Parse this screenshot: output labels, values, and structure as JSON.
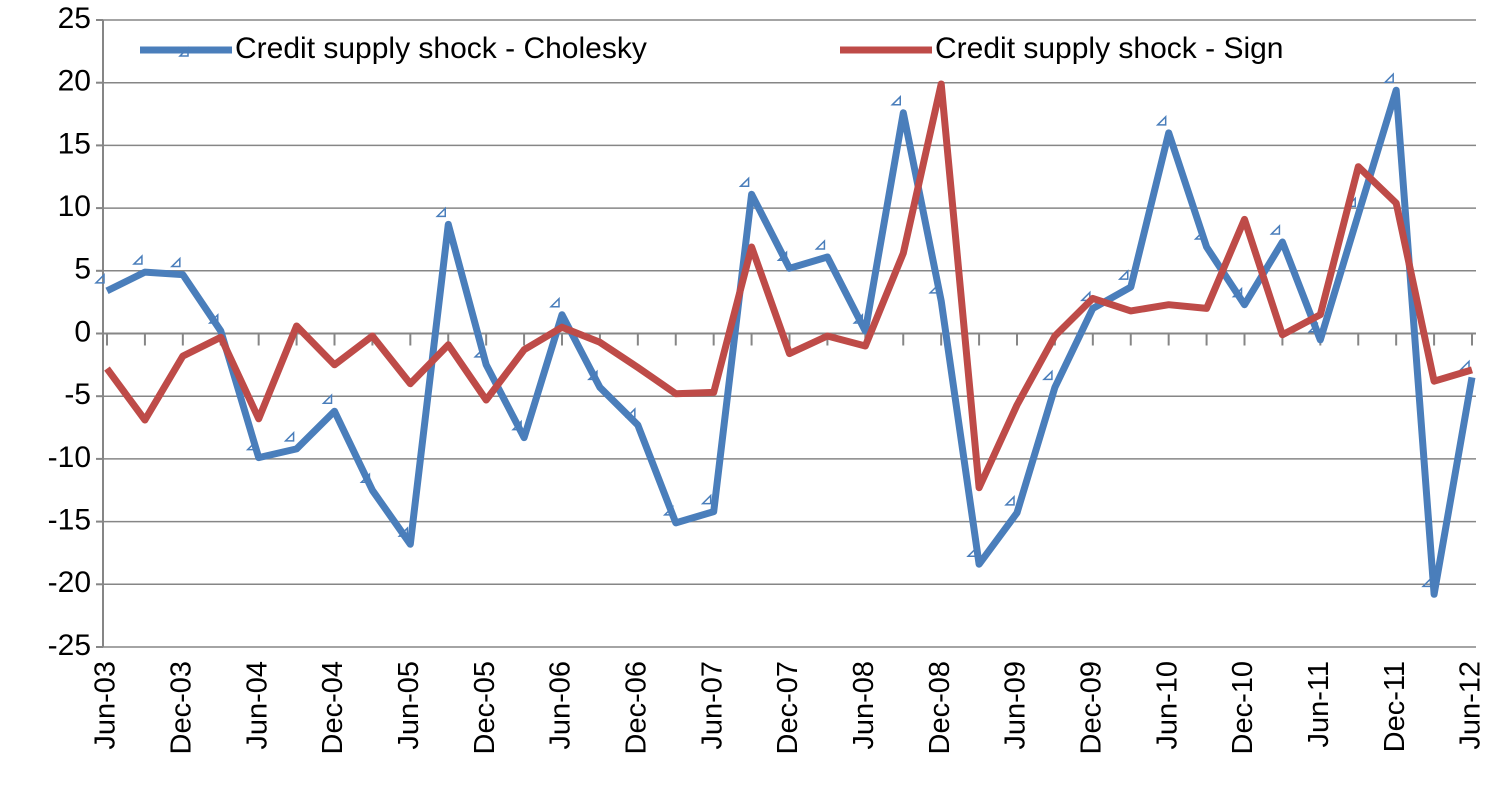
{
  "chart_data": {
    "type": "line",
    "categories": [
      "Jun-03",
      null,
      "Dec-03",
      null,
      "Jun-04",
      null,
      "Dec-04",
      null,
      "Jun-05",
      null,
      "Dec-05",
      null,
      "Jun-06",
      null,
      "Dec-06",
      null,
      "Jun-07",
      null,
      "Dec-07",
      null,
      "Jun-08",
      null,
      "Dec-08",
      null,
      "Jun-09",
      null,
      "Dec-09",
      null,
      "Jun-10",
      null,
      "Dec-10",
      null,
      "Jun-11",
      null,
      "Dec-11",
      null,
      "Jun-12"
    ],
    "series": [
      {
        "name": "Credit supply shock - Cholesky",
        "color": "#4a7ebb",
        "marker": "triangle",
        "values": [
          3.4,
          4.9,
          4.7,
          0.2,
          -9.9,
          -9.2,
          -6.2,
          -12.5,
          -16.8,
          8.7,
          -2.5,
          -8.3,
          1.5,
          -4.3,
          -7.3,
          -15.1,
          -14.2,
          11.1,
          5.2,
          6.1,
          0.2,
          17.6,
          2.6,
          -18.4,
          -14.3,
          -4.3,
          2.0,
          3.7,
          16.0,
          6.9,
          2.3,
          7.3,
          -0.5,
          9.5,
          19.4,
          -20.8,
          -3.5
        ]
      },
      {
        "name": "Credit supply shock - Sign",
        "color": "#be4b48",
        "values": [
          -2.8,
          -6.9,
          -1.8,
          -0.3,
          -6.8,
          0.6,
          -2.5,
          -0.2,
          -4.0,
          -0.9,
          -5.3,
          -1.3,
          0.5,
          -0.7,
          -2.7,
          -4.8,
          -4.7,
          6.9,
          -1.6,
          -0.2,
          -1.0,
          6.4,
          19.9,
          -12.3,
          -5.7,
          -0.2,
          2.8,
          1.8,
          2.3,
          2.0,
          9.1,
          -0.1,
          1.5,
          13.3,
          10.4,
          -3.8,
          -2.9
        ]
      }
    ],
    "ylim": [
      -25,
      25
    ],
    "yticks": [
      -25,
      -20,
      -15,
      -10,
      -5,
      0,
      5,
      10,
      15,
      20,
      25
    ],
    "grid": true,
    "legend": "top"
  }
}
